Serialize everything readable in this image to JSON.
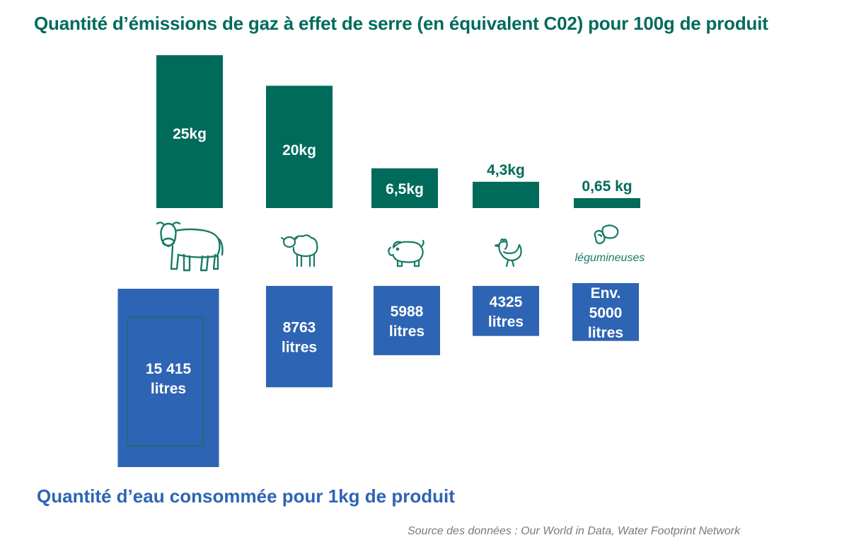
{
  "title_top": "Quantité d’émissions de gaz à effet de serre (en équivalent C02) pour 100g de produit",
  "title_bottom": "Quantité d’eau consommée pour 1kg de produit",
  "source": "Source des données : Our World in Data, Water Footprint Network",
  "colors": {
    "emissions": "#006b5b",
    "water": "#2e64b4",
    "water_border": "#1f6b63",
    "icon": "#1a7a66",
    "white": "#ffffff"
  },
  "chart_data": [
    {
      "type": "bar",
      "name": "emissions",
      "categories": [
        "cow",
        "sheep",
        "pig",
        "chicken",
        "légumineuses"
      ],
      "values": [
        25,
        20,
        6.5,
        4.3,
        0.65
      ],
      "unit": "kg",
      "labels": [
        "25kg",
        "20kg",
        "6,5kg",
        "4,3kg",
        "0,65 kg"
      ],
      "title": "Quantité d’émissions de gaz à effet de serre (en équivalent C02) pour 100g de produit"
    },
    {
      "type": "bar",
      "name": "water",
      "categories": [
        "cow",
        "sheep",
        "pig",
        "chicken",
        "légumineuses"
      ],
      "values": [
        15415,
        8763,
        5988,
        4325,
        5000
      ],
      "unit": "litres",
      "labels": [
        [
          "15 415",
          "litres"
        ],
        [
          "8763",
          "litres"
        ],
        [
          "5988",
          "litres"
        ],
        [
          "4325",
          "litres"
        ],
        [
          "Env.",
          "5000",
          "litres"
        ]
      ],
      "title": "Quantité d’eau consommée pour 1kg de produit"
    }
  ],
  "icons": [
    {
      "name": "cow-icon"
    },
    {
      "name": "sheep-icon"
    },
    {
      "name": "pig-icon"
    },
    {
      "name": "chicken-icon"
    },
    {
      "name": "beans-icon",
      "caption": "légumineuses"
    }
  ]
}
